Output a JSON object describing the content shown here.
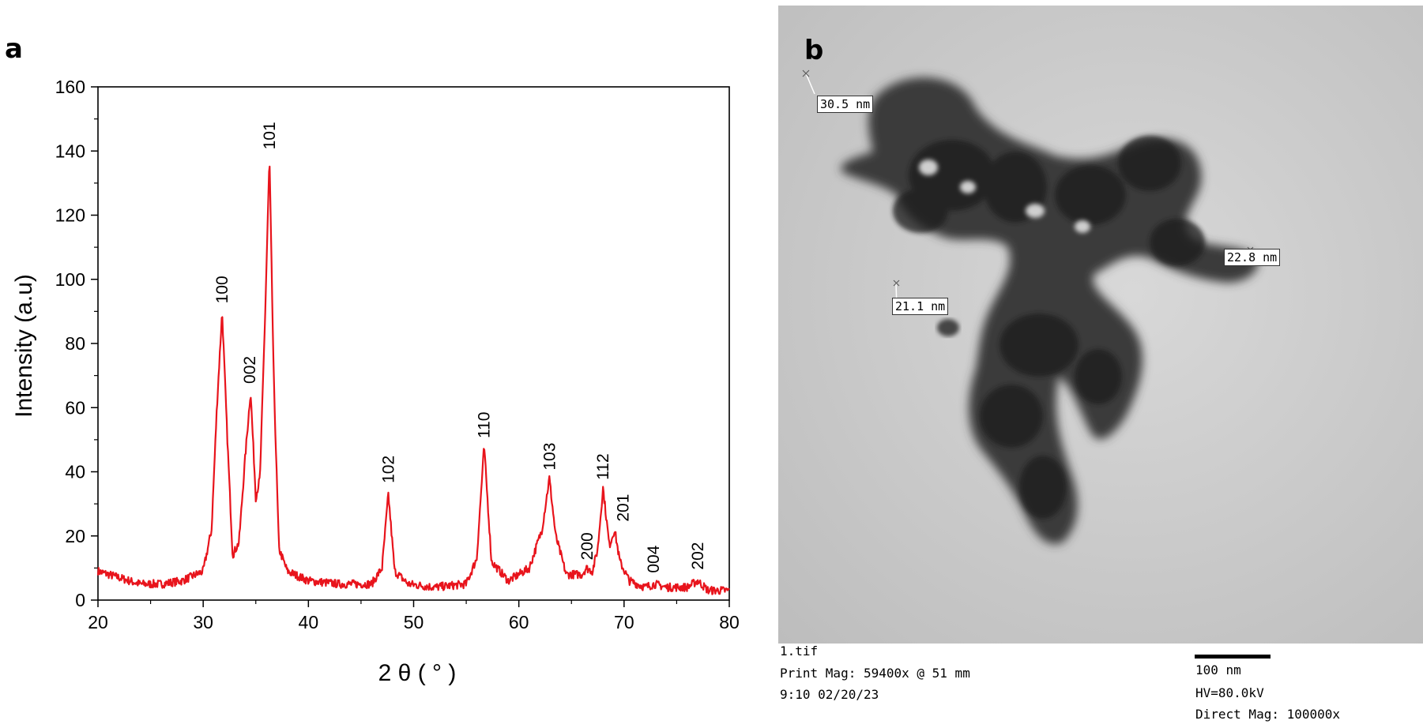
{
  "panels": {
    "a_label": "a",
    "b_label": "b"
  },
  "chart_data": {
    "type": "line",
    "title": "",
    "xlabel": "2 θ ( ° )",
    "ylabel": "Intensity (a.u)",
    "xlim": [
      20,
      80
    ],
    "ylim": [
      0,
      160
    ],
    "x_ticks": [
      20,
      30,
      40,
      50,
      60,
      70,
      80
    ],
    "y_ticks": [
      0,
      20,
      40,
      60,
      80,
      100,
      120,
      140,
      160
    ],
    "color": "#e8141c",
    "baseline": 5,
    "series": [
      {
        "x": [
          20,
          22,
          24,
          26,
          28,
          30,
          30.8,
          31.3,
          31.8,
          32.3,
          32.8,
          33.4,
          34.0,
          34.5,
          35.0,
          35.4,
          35.9,
          36.3,
          36.7,
          37.2,
          38.0,
          40,
          43,
          46,
          47.0,
          47.6,
          48.2,
          49.5,
          52,
          55,
          56.0,
          56.7,
          57.4,
          59,
          61,
          62.2,
          62.9,
          63.5,
          64.5,
          66.0,
          66.4,
          67.0,
          67.5,
          68.0,
          68.6,
          69.1,
          69.6,
          70.5,
          72,
          72.9,
          74,
          76,
          77.0,
          78,
          80
        ],
        "y": [
          9,
          7,
          5,
          5,
          6,
          9,
          22,
          60,
          90,
          50,
          14,
          18,
          45,
          65,
          32,
          38,
          90,
          138,
          70,
          16,
          9,
          6,
          5,
          5,
          10,
          33,
          9,
          5,
          4,
          5,
          13,
          48,
          12,
          6,
          10,
          22,
          38,
          20,
          8,
          8,
          10,
          9,
          16,
          35,
          17,
          22,
          12,
          6,
          4,
          5,
          4,
          4,
          6,
          3,
          3
        ]
      }
    ],
    "annotations": [
      {
        "text": "100",
        "x": 31.8,
        "y": 90
      },
      {
        "text": "002",
        "x": 34.4,
        "y": 65
      },
      {
        "text": "101",
        "x": 36.3,
        "y": 138
      },
      {
        "text": "102",
        "x": 47.6,
        "y": 34
      },
      {
        "text": "110",
        "x": 56.7,
        "y": 48
      },
      {
        "text": "103",
        "x": 62.9,
        "y": 38
      },
      {
        "text": "200",
        "x": 66.5,
        "y": 10
      },
      {
        "text": "112",
        "x": 68.0,
        "y": 35
      },
      {
        "text": "201",
        "x": 69.9,
        "y": 22
      },
      {
        "text": "004",
        "x": 72.8,
        "y": 6
      },
      {
        "text": "202",
        "x": 77.0,
        "y": 7
      }
    ]
  },
  "tem": {
    "measurements": [
      {
        "name": "measurement-label-1",
        "text": "30.5 nm"
      },
      {
        "name": "measurement-label-2",
        "text": "22.8 nm"
      },
      {
        "name": "measurement-label-3",
        "text": "21.1 nm"
      }
    ],
    "info": {
      "filename": "1.tif",
      "print_mag": "Print Mag: 59400x @ 51 mm",
      "datetime": "9:10 02/20/23",
      "scale": "100 nm",
      "hv": "HV=80.0kV",
      "direct_mag": "Direct Mag: 100000x"
    }
  }
}
